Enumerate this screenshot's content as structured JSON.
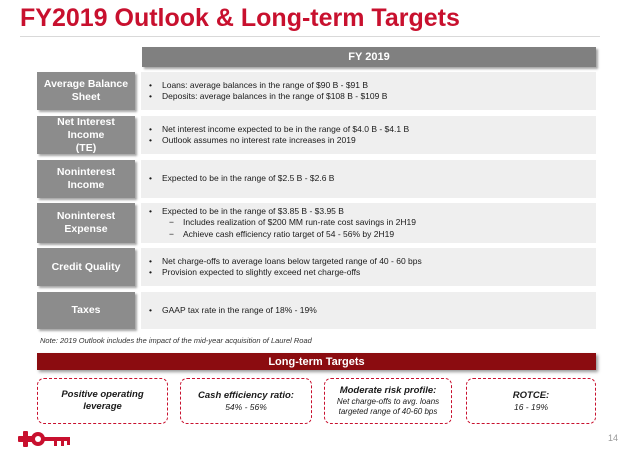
{
  "title": "FY2019 Outlook & Long-term Targets",
  "column_header": "FY 2019",
  "rows": [
    {
      "label": "Average Balance\nSheet",
      "bullets": [
        "Loans: average balances in the range of $90 B - $91 B",
        "Deposits: average balances in the range of $108 B - $109 B"
      ]
    },
    {
      "label": "Net Interest Income\n(TE)",
      "bullets": [
        "Net interest income expected to be in the range of $4.0 B - $4.1 B",
        "Outlook assumes no interest rate increases in 2019"
      ]
    },
    {
      "label": "Noninterest Income",
      "bullets": [
        "Expected to be in the range of $2.5 B - $2.6 B"
      ]
    },
    {
      "label": "Noninterest\nExpense",
      "bullets": [
        "Expected to be in the range of $3.85 B - $3.95 B"
      ],
      "sub_bullets": [
        "Includes realization of $200 MM run-rate cost savings in 2H19",
        "Achieve cash efficiency ratio target of 54 - 56% by 2H19"
      ]
    },
    {
      "label": "Credit Quality",
      "bullets": [
        "Net charge-offs to average loans below targeted range of 40 - 60 bps",
        "Provision expected to slightly exceed net charge-offs"
      ]
    },
    {
      "label": "Taxes",
      "bullets": [
        "GAAP tax rate in the range of 18% - 19%"
      ]
    }
  ],
  "bullet_glyph": "•",
  "sub_bullet_glyph": "−",
  "note": "Note: 2019 Outlook includes the impact of the mid-year acquisition of Laurel Road",
  "long_term": {
    "header": "Long-term Targets",
    "targets": [
      {
        "heading": "Positive operating leverage",
        "detail": ""
      },
      {
        "heading": "Cash efficiency ratio:",
        "detail": "54% - 56%"
      },
      {
        "heading": "Moderate risk profile:",
        "detail": "Net charge-offs to avg. loans targeted range of 40-60 bps"
      },
      {
        "heading": "ROTCE:",
        "detail": "16 - 19%"
      }
    ]
  },
  "page_number": "14",
  "colors": {
    "brand_red": "#c8102e",
    "dark_red": "#8b0c10",
    "label_gray": "#8c8c8c",
    "header_gray": "#808080",
    "body_gray": "#efefef"
  },
  "logo_icon": "key-logo-icon"
}
